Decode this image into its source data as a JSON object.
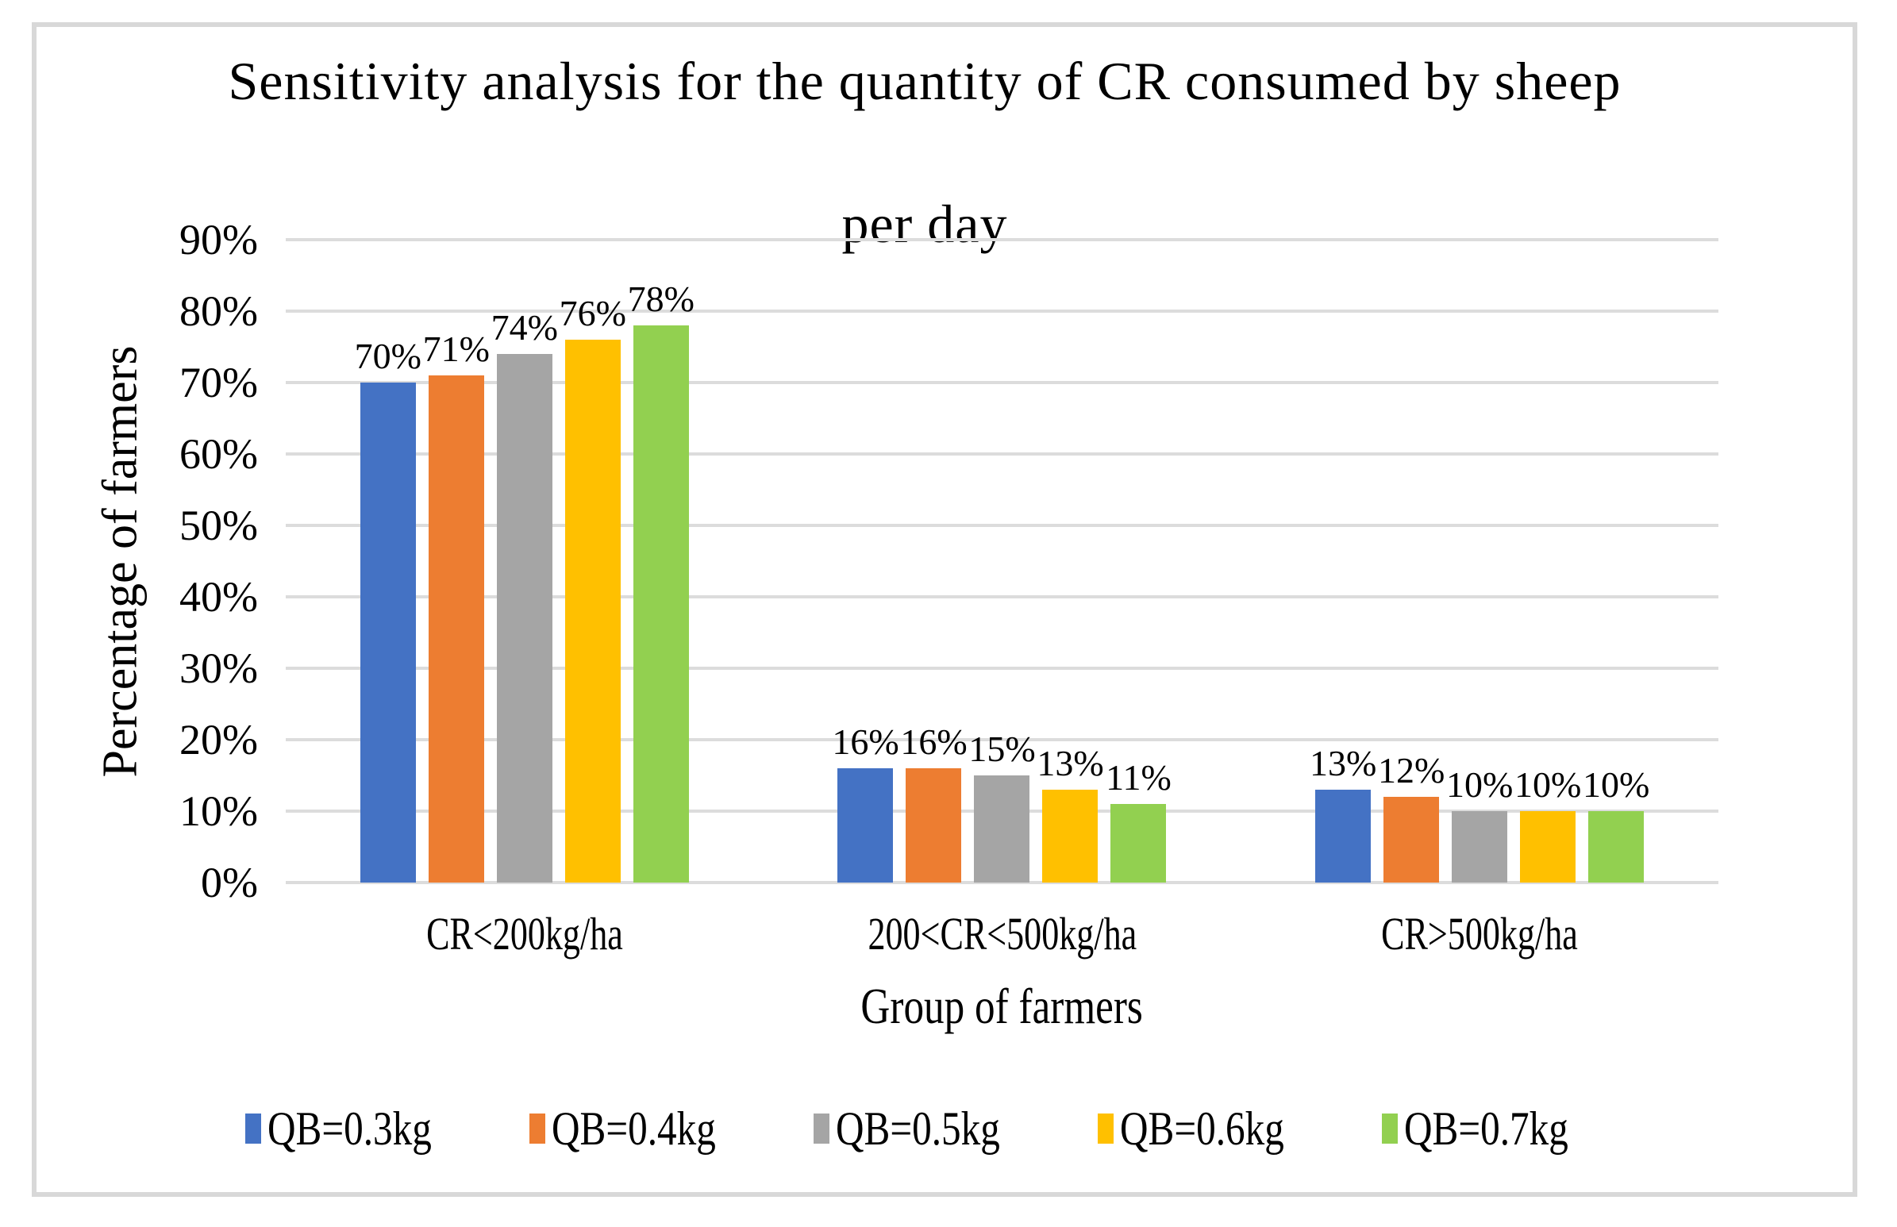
{
  "chart_data": {
    "type": "bar",
    "title": "Sensitivity analysis for the quantity of CR consumed by sheep per day",
    "title_lines": [
      "Sensitivity analysis for the quantity of CR consumed by sheep",
      "per day"
    ],
    "xlabel": "Group of farmers",
    "ylabel": "Percentage of farmers",
    "categories": [
      "CR<200kg/ha",
      "200<CR<500kg/ha",
      "CR>500kg/ha"
    ],
    "series": [
      {
        "name": "QB=0.3kg",
        "color": "#4472C4",
        "values": [
          70,
          16,
          13
        ],
        "data_labels": [
          "70%",
          "16%",
          "13%"
        ]
      },
      {
        "name": "QB=0.4kg",
        "color": "#ED7D31",
        "values": [
          71,
          16,
          12
        ],
        "data_labels": [
          "71%",
          "16%",
          "12%"
        ]
      },
      {
        "name": "QB=0.5kg",
        "color": "#A5A5A5",
        "values": [
          74,
          15,
          10
        ],
        "data_labels": [
          "74%",
          "15%",
          "10%"
        ]
      },
      {
        "name": "QB=0.6kg",
        "color": "#FFC000",
        "values": [
          76,
          13,
          10
        ],
        "data_labels": [
          "76%",
          "13%",
          "10%"
        ]
      },
      {
        "name": "QB=0.7kg",
        "color": "#92D050",
        "values": [
          78,
          11,
          10
        ],
        "data_labels": [
          "78%",
          "11%",
          "10%"
        ]
      }
    ],
    "y_axis": {
      "min": 0,
      "max": 90,
      "step": 10,
      "tick_labels": [
        "0%",
        "10%",
        "20%",
        "30%",
        "40%",
        "50%",
        "60%",
        "70%",
        "80%",
        "90%"
      ]
    },
    "legend_position": "bottom",
    "grid": true,
    "gridline_color": "#DCDCDC",
    "frame_color": "#D8D8D8"
  }
}
